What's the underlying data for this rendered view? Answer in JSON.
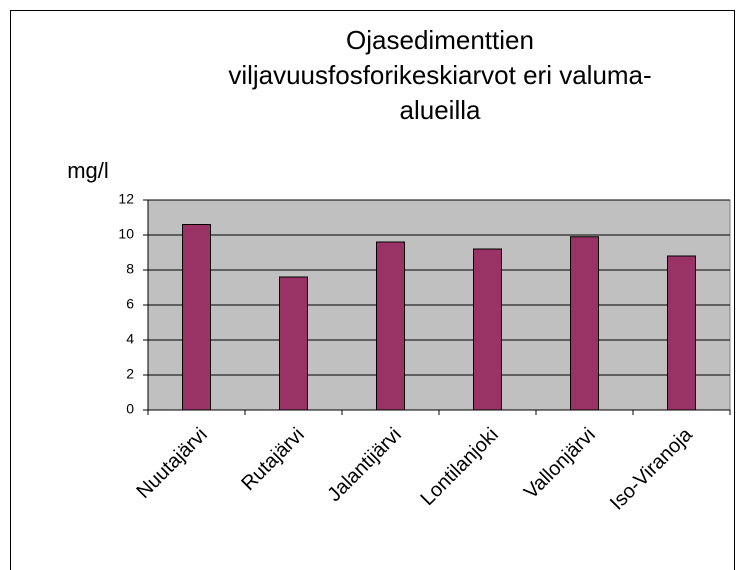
{
  "chart_data": {
    "type": "bar",
    "title": [
      "Ojasedimenttien",
      "viljavuusfosforikeskiarvot eri valuma-",
      "alueilla"
    ],
    "y_label": "mg/l",
    "categories": [
      "Nuutajärvi",
      "Rutajärvi",
      "Jalantijärvi",
      "Lontilanjoki",
      "Vallonjärvi",
      "Iso-Viranoja"
    ],
    "values": [
      10.6,
      7.6,
      9.6,
      9.2,
      9.9,
      8.8
    ],
    "color": "#993366",
    "ylim": [
      0,
      12
    ],
    "yticks": [
      0,
      2,
      4,
      6,
      8,
      10,
      12
    ],
    "grid": true
  }
}
